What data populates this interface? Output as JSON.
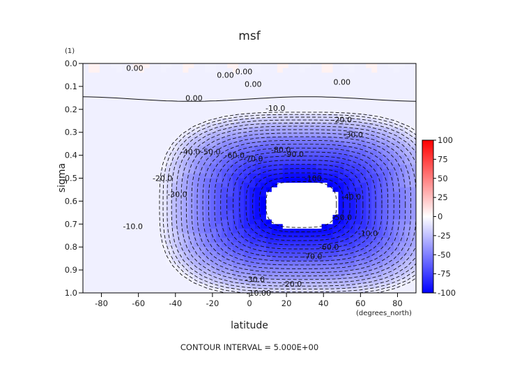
{
  "chart_data": {
    "type": "heatmap",
    "title": "msf",
    "xlabel": "latitude",
    "ylabel": "sigma",
    "x_units": "(degrees_north)",
    "y_units": "(1)",
    "xlim": [
      -90,
      90
    ],
    "ylim": [
      0.0,
      1.0
    ],
    "y_inverted": true,
    "x_ticks": [
      -80,
      -60,
      -40,
      -20,
      0,
      20,
      40,
      60,
      80
    ],
    "y_ticks": [
      "0.0",
      "0.1",
      "0.2",
      "0.3",
      "0.4",
      "0.5",
      "0.6",
      "0.7",
      "0.8",
      "0.9",
      "1.0"
    ],
    "footer": "CONTOUR INTERVAL = 5.000E+00",
    "colorbar": {
      "min": -100,
      "max": 100,
      "ticks": [
        100,
        75,
        50,
        25,
        0,
        -25,
        -50,
        -75,
        -100
      ],
      "colors": {
        "low": "#0000ff",
        "mid": "#ffffff",
        "high": "#ff0000"
      }
    },
    "cell": {
      "center_lat": 28,
      "center_sigma": 0.615,
      "min_value": -100,
      "blank_below": -100
    },
    "contour_labels": [
      {
        "text": "0.00",
        "x": -62,
        "y": 0.02
      },
      {
        "text": "0.00",
        "x": -13,
        "y": 0.05
      },
      {
        "text": "0.00",
        "x": -3,
        "y": 0.035
      },
      {
        "text": "0.00",
        "x": 2,
        "y": 0.09
      },
      {
        "text": "0.00",
        "x": 50,
        "y": 0.08
      },
      {
        "text": "0.00",
        "x": -30,
        "y": 0.15
      },
      {
        "text": "-10.0",
        "x": 14,
        "y": 0.195
      },
      {
        "text": "-20.0",
        "x": 50,
        "y": 0.245
      },
      {
        "text": "-30.0",
        "x": 56,
        "y": 0.31
      },
      {
        "text": "-40.0",
        "x": -32,
        "y": 0.385
      },
      {
        "text": "-50.0",
        "x": -21,
        "y": 0.385
      },
      {
        "text": "-60.0",
        "x": -8,
        "y": 0.4
      },
      {
        "text": "-70.0",
        "x": 2,
        "y": 0.415
      },
      {
        "text": "-80.0",
        "x": 17,
        "y": 0.375
      },
      {
        "text": "-90.0",
        "x": 24,
        "y": 0.395
      },
      {
        "text": "-100.",
        "x": 35,
        "y": 0.5
      },
      {
        "text": "-20.0",
        "x": -47,
        "y": 0.5
      },
      {
        "text": "-30.0",
        "x": -39,
        "y": 0.57
      },
      {
        "text": "-40.0",
        "x": 55,
        "y": 0.58
      },
      {
        "text": "-50.0",
        "x": 50,
        "y": 0.67
      },
      {
        "text": "-60.0",
        "x": 43,
        "y": 0.8
      },
      {
        "text": "-70.0",
        "x": 34,
        "y": 0.84
      },
      {
        "text": "-10.0",
        "x": -63,
        "y": 0.71
      },
      {
        "text": "-10.0",
        "x": 64,
        "y": 0.74
      },
      {
        "text": "-30.0",
        "x": 3,
        "y": 0.94
      },
      {
        "text": "-20.0",
        "x": 23,
        "y": 0.96
      },
      {
        "text": "-10.00",
        "x": 5,
        "y": 1.0
      }
    ]
  }
}
